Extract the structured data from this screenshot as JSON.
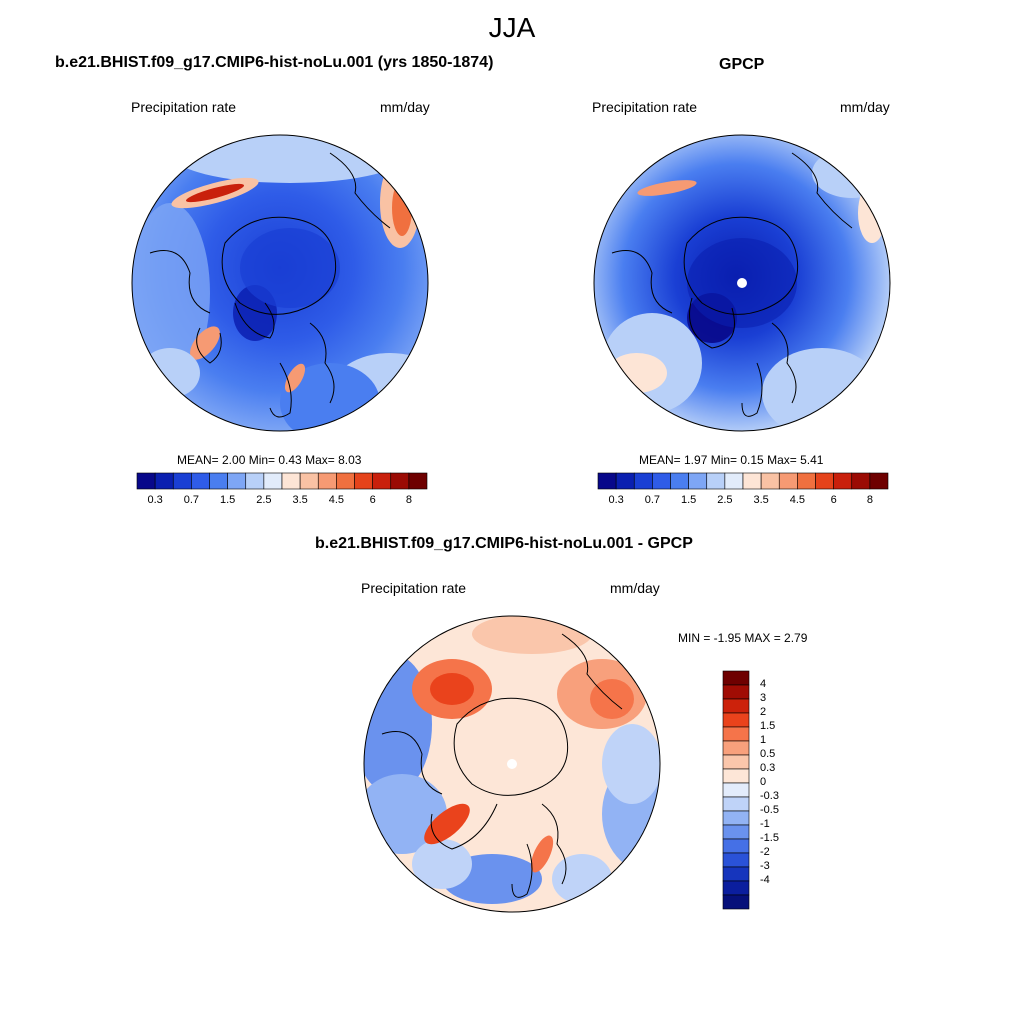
{
  "main_title": "JJA",
  "panels": {
    "model": {
      "title": "b.e21.BHIST.f09_g17.CMIP6-hist-noLu.001 (yrs 1850-1874)",
      "left_label": "Precipitation rate",
      "right_label": "mm/day",
      "stats": "MEAN=   2.00  Min=   0.43  Max=   8.03"
    },
    "obs": {
      "title": "GPCP",
      "left_label": "Precipitation rate",
      "right_label": "mm/day",
      "stats": "MEAN=   1.97  Min=   0.15  Max=   5.41"
    },
    "diff": {
      "title": "b.e21.BHIST.f09_g17.CMIP6-hist-noLu.001 - GPCP",
      "left_label": "Precipitation rate",
      "right_label": "mm/day",
      "stats": "MIN =  -1.95 MAX =   2.79"
    }
  },
  "colors": {
    "abs_scale": [
      "#08088a",
      "#0a1fb0",
      "#1a3fd4",
      "#2f5ce8",
      "#4a7ef0",
      "#7ea6f5",
      "#b8d0f8",
      "#e2ecfb",
      "#fde5d6",
      "#f9c2a4",
      "#f69a73",
      "#f0703f",
      "#e5431b",
      "#c9200c",
      "#9b0b04",
      "#6e0000"
    ],
    "diff_scale": [
      "#6e0000",
      "#a00c04",
      "#cc220b",
      "#ea431c",
      "#f5744a",
      "#f8a07c",
      "#fac6ab",
      "#fde6d7",
      "#e3ecfb",
      "#bfd3f8",
      "#92b3f4",
      "#6a92ee",
      "#4570e6",
      "#2a52d8",
      "#1635bd",
      "#0b1e9e",
      "#06107a"
    ]
  },
  "chart_data": [
    {
      "type": "heatmap",
      "title": "b.e21.BHIST.f09_g17.CMIP6-hist-noLu.001 (yrs 1850-1874)",
      "subtitle": "Precipitation rate",
      "units": "mm/day",
      "projection": "north polar stereographic",
      "mean": 2.0,
      "min": 0.43,
      "max": 8.03,
      "colorbar_ticks": [
        "0.3",
        "0.7",
        "1.5",
        "2.5",
        "3.5",
        "4.5",
        "6",
        "8"
      ],
      "legend": "bottom"
    },
    {
      "type": "heatmap",
      "title": "GPCP",
      "subtitle": "Precipitation rate",
      "units": "mm/day",
      "projection": "north polar stereographic",
      "mean": 1.97,
      "min": 0.15,
      "max": 5.41,
      "colorbar_ticks": [
        "0.3",
        "0.7",
        "1.5",
        "2.5",
        "3.5",
        "4.5",
        "6",
        "8"
      ],
      "legend": "bottom"
    },
    {
      "type": "heatmap",
      "title": "b.e21.BHIST.f09_g17.CMIP6-hist-noLu.001 - GPCP",
      "subtitle": "Precipitation rate",
      "units": "mm/day",
      "projection": "north polar stereographic",
      "min": -1.95,
      "max": 2.79,
      "colorbar_ticks": [
        "4",
        "3",
        "2",
        "1.5",
        "1",
        "0.5",
        "0.3",
        "0",
        "-0.3",
        "-0.5",
        "-1",
        "-1.5",
        "-2",
        "-3",
        "-4"
      ],
      "legend": "right"
    }
  ]
}
